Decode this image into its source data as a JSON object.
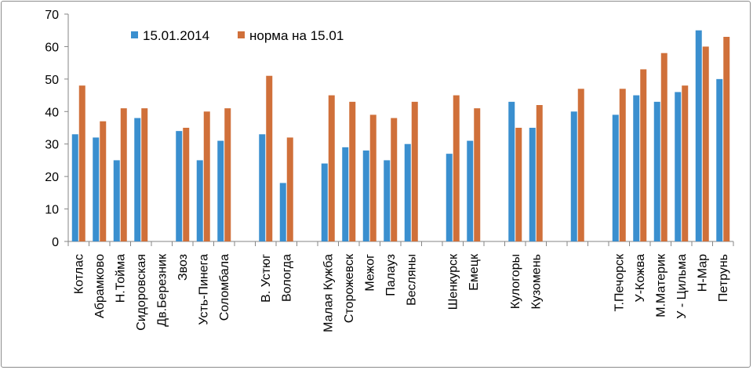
{
  "chart_data": {
    "type": "bar",
    "title": "",
    "xlabel": "",
    "ylabel": "",
    "ylim": [
      0,
      70
    ],
    "yticks": [
      "0",
      "10",
      "20",
      "30",
      "40",
      "50",
      "60",
      "70"
    ],
    "grid": false,
    "legend_position": "top-left",
    "categories": [
      "Котлас",
      "Абрамково",
      "Н.Тойма",
      "Сидоровская",
      "Дв.Березник",
      "Звоз",
      "Усть-Пинега",
      "Соломбала",
      "",
      "В. Устюг",
      "Вологда",
      "",
      "Малая Кужба",
      "Сторожевск",
      "Межог",
      "Палауз",
      "Весляны",
      "",
      "Шенкурск",
      "Емецк",
      "",
      "Кулогоры",
      "Кузомень",
      "",
      "",
      "",
      "Т.Печорск",
      "У-Кожва",
      "М.Материк",
      "У - Цильма",
      "Н-Мар",
      "Петрунь"
    ],
    "series": [
      {
        "name": "15.01.2014",
        "color": "#3a8fcf",
        "values": [
          33,
          32,
          25,
          38,
          null,
          34,
          25,
          31,
          null,
          33,
          18,
          null,
          24,
          29,
          28,
          25,
          30,
          null,
          27,
          31,
          null,
          43,
          35,
          null,
          40,
          null,
          39,
          45,
          43,
          46,
          65,
          50
        ]
      },
      {
        "name": "норма на 15.01",
        "color": "#d0703a",
        "values": [
          48,
          37,
          41,
          41,
          null,
          35,
          40,
          41,
          null,
          51,
          32,
          null,
          45,
          43,
          39,
          38,
          43,
          null,
          45,
          41,
          null,
          35,
          42,
          null,
          47,
          null,
          47,
          53,
          58,
          48,
          60,
          63
        ]
      }
    ]
  }
}
